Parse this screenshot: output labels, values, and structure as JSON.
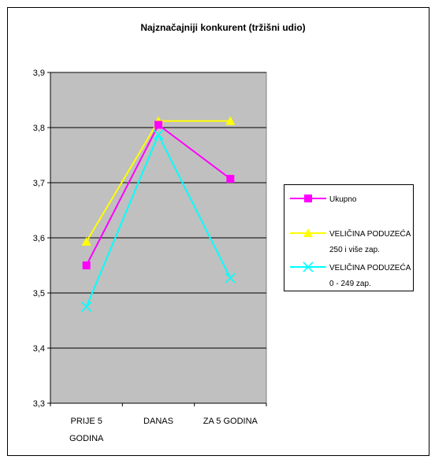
{
  "chart_data": {
    "type": "line",
    "title": "Najznačajniji konkurent (tržišni udio)",
    "categories": [
      [
        "PRIJE 5",
        "GODINA"
      ],
      [
        "DANAS"
      ],
      [
        "ZA 5 GODINA"
      ]
    ],
    "y_ticks": [
      "3,3",
      "3,4",
      "3,5",
      "3,6",
      "3,7",
      "3,8",
      "3,9"
    ],
    "ylim": [
      3.3,
      3.9
    ],
    "grid": true,
    "legend_position": "right",
    "plot_background": "#c0c0c0",
    "series": [
      {
        "legend": [
          "Ukupno"
        ],
        "color": "#ff00ff",
        "marker": "square",
        "values": [
          3.55,
          3.805,
          3.707
        ]
      },
      {
        "legend": [
          "VELIČINA PODUZEĆA",
          "250 i više zap."
        ],
        "color": "#ffff00",
        "marker": "triangle",
        "values": [
          3.593,
          3.812,
          3.812
        ]
      },
      {
        "legend": [
          "VELIČINA PODUZEĆA",
          "0 - 249 zap."
        ],
        "color": "#00ffff",
        "marker": "x",
        "values": [
          3.475,
          3.787,
          3.527
        ]
      }
    ]
  }
}
